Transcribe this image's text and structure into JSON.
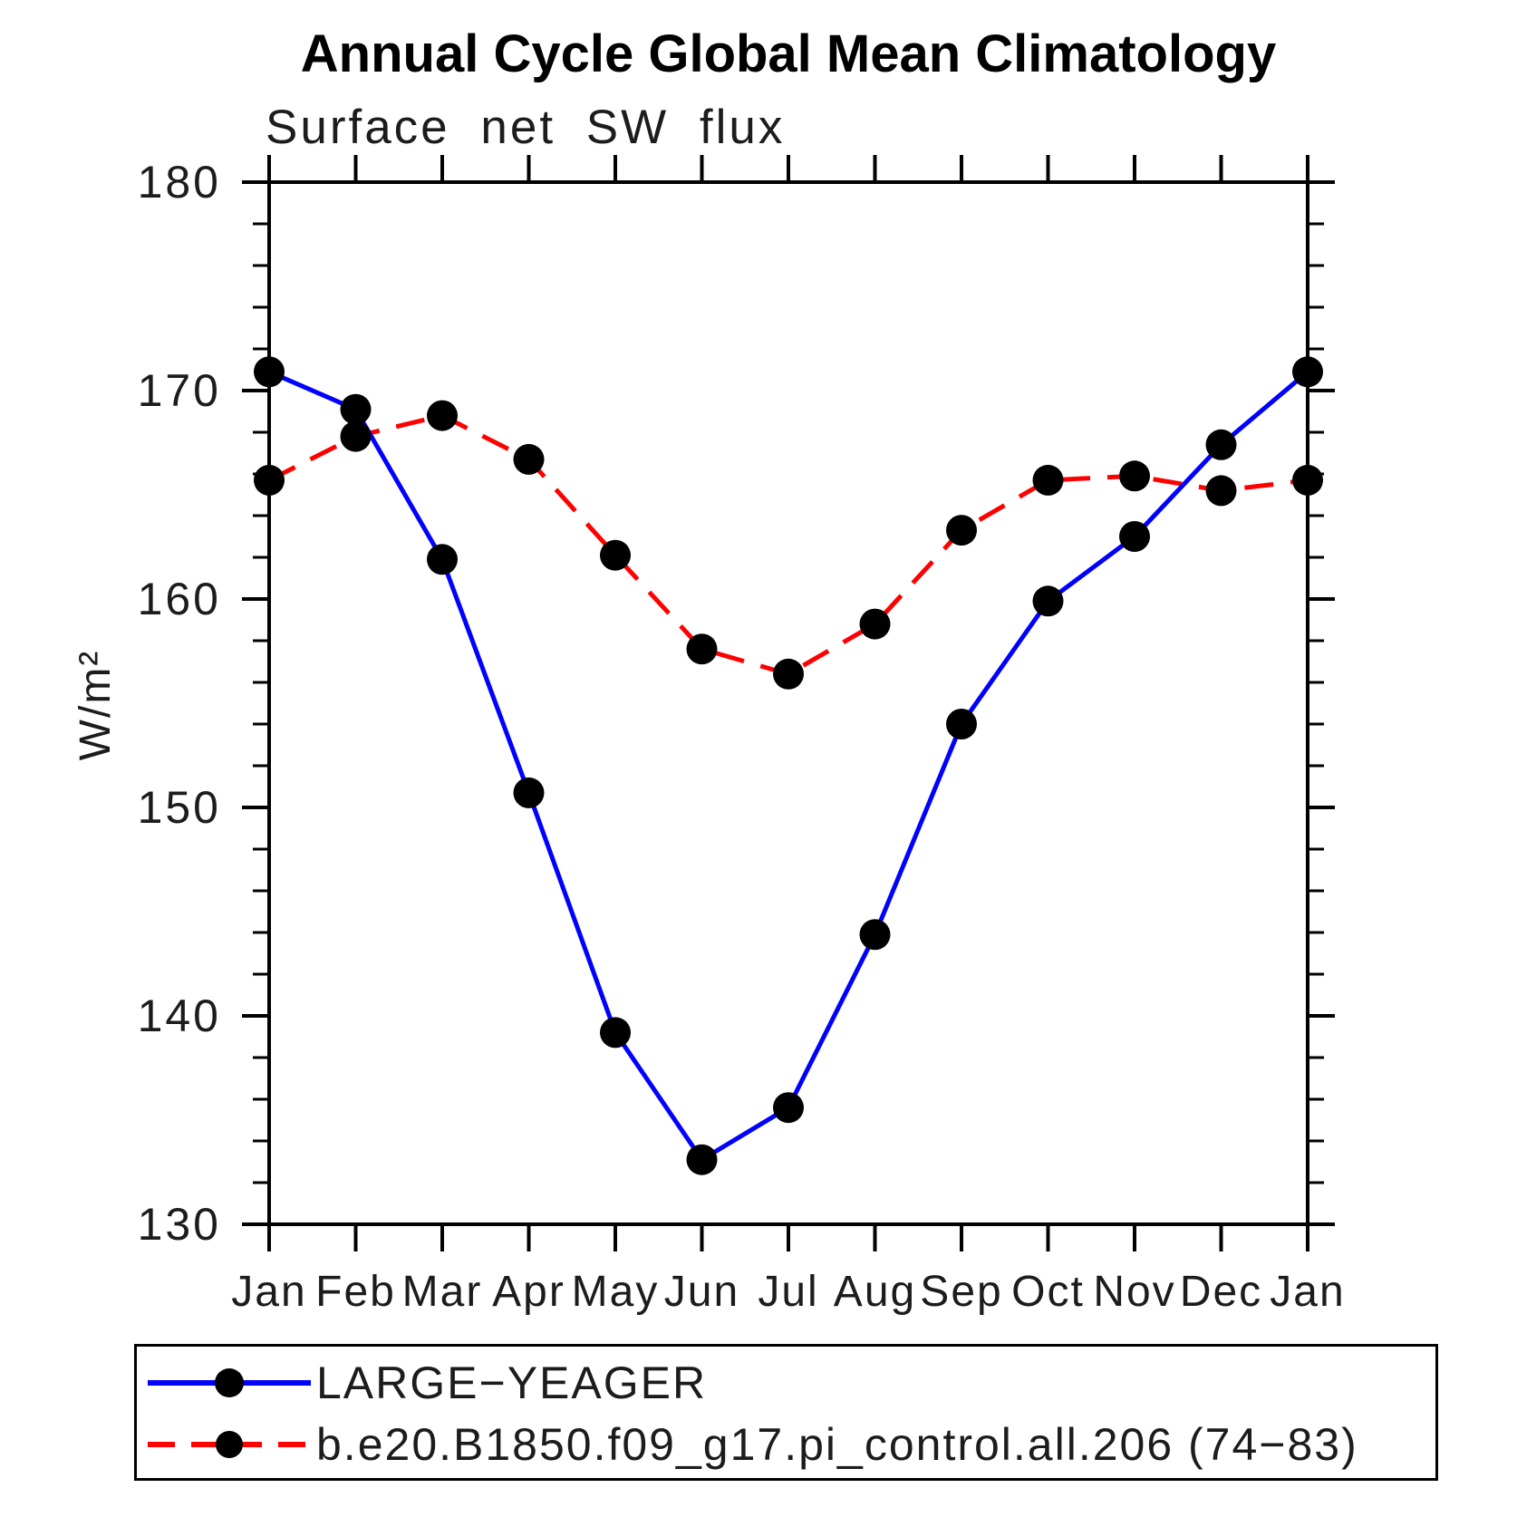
{
  "chart_data": {
    "type": "line",
    "title": "Annual Cycle Global Mean Climatology",
    "subtitle": "Surface net SW flux",
    "ylabel": "W/m²",
    "xlabel": "",
    "categories": [
      "Jan",
      "Feb",
      "Mar",
      "Apr",
      "May",
      "Jun",
      "Jul",
      "Aug",
      "Sep",
      "Oct",
      "Nov",
      "Dec",
      "Jan"
    ],
    "ylim": [
      130,
      180
    ],
    "yticks_labeled": [
      180,
      170,
      160,
      150,
      140,
      130
    ],
    "ytick_minor_step": 2,
    "grid": false,
    "legend_position": "bottom-box",
    "marker_color": "#000000",
    "axis_color": "#000000",
    "series": [
      {
        "name": "LARGE−YEAGER",
        "color": "#0000ff",
        "line_style": "solid",
        "marker": "filled-circle",
        "values": [
          170.9,
          169.1,
          161.9,
          150.7,
          139.2,
          133.1,
          135.6,
          143.9,
          154.0,
          159.9,
          163.0,
          167.4,
          170.9
        ]
      },
      {
        "name": "b.e20.B1850.f09_g17.pi_control.all.206 (74−83)",
        "color": "#ff0000",
        "line_style": "dashed",
        "marker": "filled-circle",
        "values": [
          165.7,
          167.8,
          168.8,
          166.7,
          162.1,
          157.6,
          156.4,
          158.8,
          163.3,
          165.7,
          165.9,
          165.2,
          165.7
        ]
      }
    ]
  }
}
